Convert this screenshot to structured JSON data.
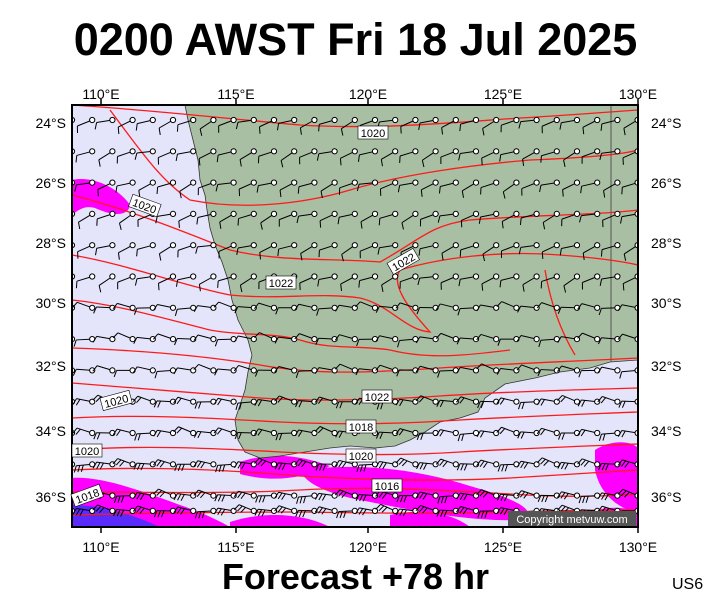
{
  "title": "0200 AWST Fri 18 Jul 2025",
  "footer": "Forecast +78 hr",
  "code": "US6",
  "copyright": "Copyright metvuw.com",
  "lon_labels": [
    "110°E",
    "115°E",
    "120°E",
    "125°E",
    "130°E"
  ],
  "lat_labels": [
    "24°S",
    "26°S",
    "28°S",
    "30°S",
    "32°S",
    "34°S",
    "36°S"
  ],
  "isobar_labels": [
    "1020",
    "1020",
    "1022",
    "1022",
    "1022",
    "1020",
    "1020",
    "1018",
    "1020",
    "1018",
    "1016"
  ],
  "colors": {
    "sea": "#e4e4fa",
    "land": "#a9bfa3",
    "isobar": "#ff1a1a",
    "wind_fast": "#ff00ff",
    "wind_faster": "#5a2bff"
  }
}
